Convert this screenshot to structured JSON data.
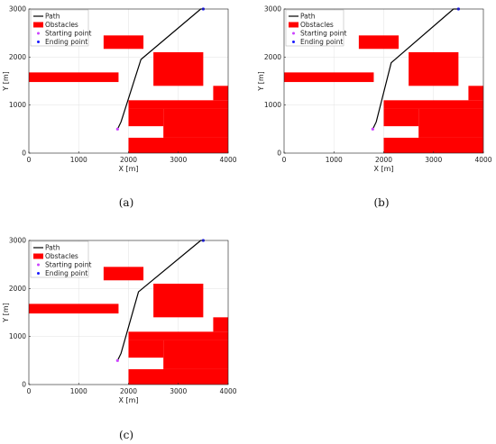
{
  "captions": [
    "(a)",
    "(b)",
    "(c)"
  ],
  "colors": {
    "obstacle": "#ff0000",
    "path": "#000000",
    "start": "#cc44ff",
    "end": "#1a1aff"
  },
  "chart_data": [
    {
      "type": "line",
      "panel": "a",
      "xlabel": "X [m]",
      "ylabel": "Y [m]",
      "xlim": [
        0,
        4000
      ],
      "ylim": [
        0,
        3000
      ],
      "xticks": [
        0,
        1000,
        2000,
        3000,
        4000
      ],
      "yticks": [
        0,
        1000,
        2000,
        3000
      ],
      "grid": true,
      "legend_position": "top-left",
      "legend": [
        "Path",
        "Obstacles",
        "Starting point",
        "Ending point"
      ],
      "obstacles": [
        {
          "x0": 0,
          "y0": 1480,
          "x1": 1800,
          "y1": 1680
        },
        {
          "x0": 1500,
          "y0": 2170,
          "x1": 2300,
          "y1": 2450
        },
        {
          "x0": 2500,
          "y0": 1400,
          "x1": 3500,
          "y1": 2100
        },
        {
          "x0": 2000,
          "y0": 920,
          "x1": 4000,
          "y1": 1100
        },
        {
          "x0": 3700,
          "y0": 1100,
          "x1": 4000,
          "y1": 1400
        },
        {
          "x0": 2000,
          "y0": 0,
          "x1": 4000,
          "y1": 320
        },
        {
          "x0": 2700,
          "y0": 320,
          "x1": 4000,
          "y1": 920
        },
        {
          "x0": 2000,
          "y0": 560,
          "x1": 2700,
          "y1": 920
        }
      ],
      "path": [
        {
          "x": 1780,
          "y": 500
        },
        {
          "x": 1850,
          "y": 650
        },
        {
          "x": 2250,
          "y": 1950
        },
        {
          "x": 3450,
          "y": 3000
        },
        {
          "x": 3500,
          "y": 3000
        }
      ],
      "start_point": {
        "x": 1780,
        "y": 500
      },
      "end_point": {
        "x": 3500,
        "y": 3000
      }
    },
    {
      "type": "line",
      "panel": "b",
      "xlabel": "X [m]",
      "ylabel": "Y [m]",
      "xlim": [
        0,
        4000
      ],
      "ylim": [
        0,
        3000
      ],
      "xticks": [
        0,
        1000,
        2000,
        3000,
        4000
      ],
      "yticks": [
        0,
        1000,
        2000,
        3000
      ],
      "grid": true,
      "legend_position": "top-left",
      "legend": [
        "Path",
        "Obstacles",
        "Starting point",
        "Ending point"
      ],
      "obstacles": [
        {
          "x0": 0,
          "y0": 1480,
          "x1": 1800,
          "y1": 1680
        },
        {
          "x0": 1500,
          "y0": 2170,
          "x1": 2300,
          "y1": 2450
        },
        {
          "x0": 2500,
          "y0": 1400,
          "x1": 3500,
          "y1": 2100
        },
        {
          "x0": 2000,
          "y0": 920,
          "x1": 4000,
          "y1": 1100
        },
        {
          "x0": 3700,
          "y0": 1100,
          "x1": 4000,
          "y1": 1400
        },
        {
          "x0": 2000,
          "y0": 0,
          "x1": 4000,
          "y1": 320
        },
        {
          "x0": 2700,
          "y0": 320,
          "x1": 4000,
          "y1": 920
        },
        {
          "x0": 2000,
          "y0": 560,
          "x1": 2700,
          "y1": 920
        }
      ],
      "path": [
        {
          "x": 1780,
          "y": 500
        },
        {
          "x": 1850,
          "y": 650
        },
        {
          "x": 2150,
          "y": 1880
        },
        {
          "x": 3400,
          "y": 3000
        },
        {
          "x": 3500,
          "y": 3000
        }
      ],
      "start_point": {
        "x": 1780,
        "y": 500
      },
      "end_point": {
        "x": 3500,
        "y": 3000
      }
    },
    {
      "type": "line",
      "panel": "c",
      "xlabel": "X [m]",
      "ylabel": "Y [m]",
      "xlim": [
        0,
        4000
      ],
      "ylim": [
        0,
        3000
      ],
      "xticks": [
        0,
        1000,
        2000,
        3000,
        4000
      ],
      "yticks": [
        0,
        1000,
        2000,
        3000
      ],
      "grid": true,
      "legend_position": "top-left",
      "legend": [
        "Path",
        "Obstacles",
        "Starting point",
        "Ending point"
      ],
      "obstacles": [
        {
          "x0": 0,
          "y0": 1480,
          "x1": 1800,
          "y1": 1680
        },
        {
          "x0": 1500,
          "y0": 2170,
          "x1": 2300,
          "y1": 2450
        },
        {
          "x0": 2500,
          "y0": 1400,
          "x1": 3500,
          "y1": 2100
        },
        {
          "x0": 2000,
          "y0": 920,
          "x1": 4000,
          "y1": 1100
        },
        {
          "x0": 3700,
          "y0": 1100,
          "x1": 4000,
          "y1": 1400
        },
        {
          "x0": 2000,
          "y0": 0,
          "x1": 4000,
          "y1": 320
        },
        {
          "x0": 2700,
          "y0": 320,
          "x1": 4000,
          "y1": 920
        },
        {
          "x0": 2000,
          "y0": 560,
          "x1": 2700,
          "y1": 920
        }
      ],
      "path": [
        {
          "x": 1780,
          "y": 500
        },
        {
          "x": 1850,
          "y": 650
        },
        {
          "x": 2200,
          "y": 1930
        },
        {
          "x": 3450,
          "y": 3000
        },
        {
          "x": 3500,
          "y": 3000
        }
      ],
      "start_point": {
        "x": 1780,
        "y": 500
      },
      "end_point": {
        "x": 3500,
        "y": 3000
      }
    }
  ]
}
